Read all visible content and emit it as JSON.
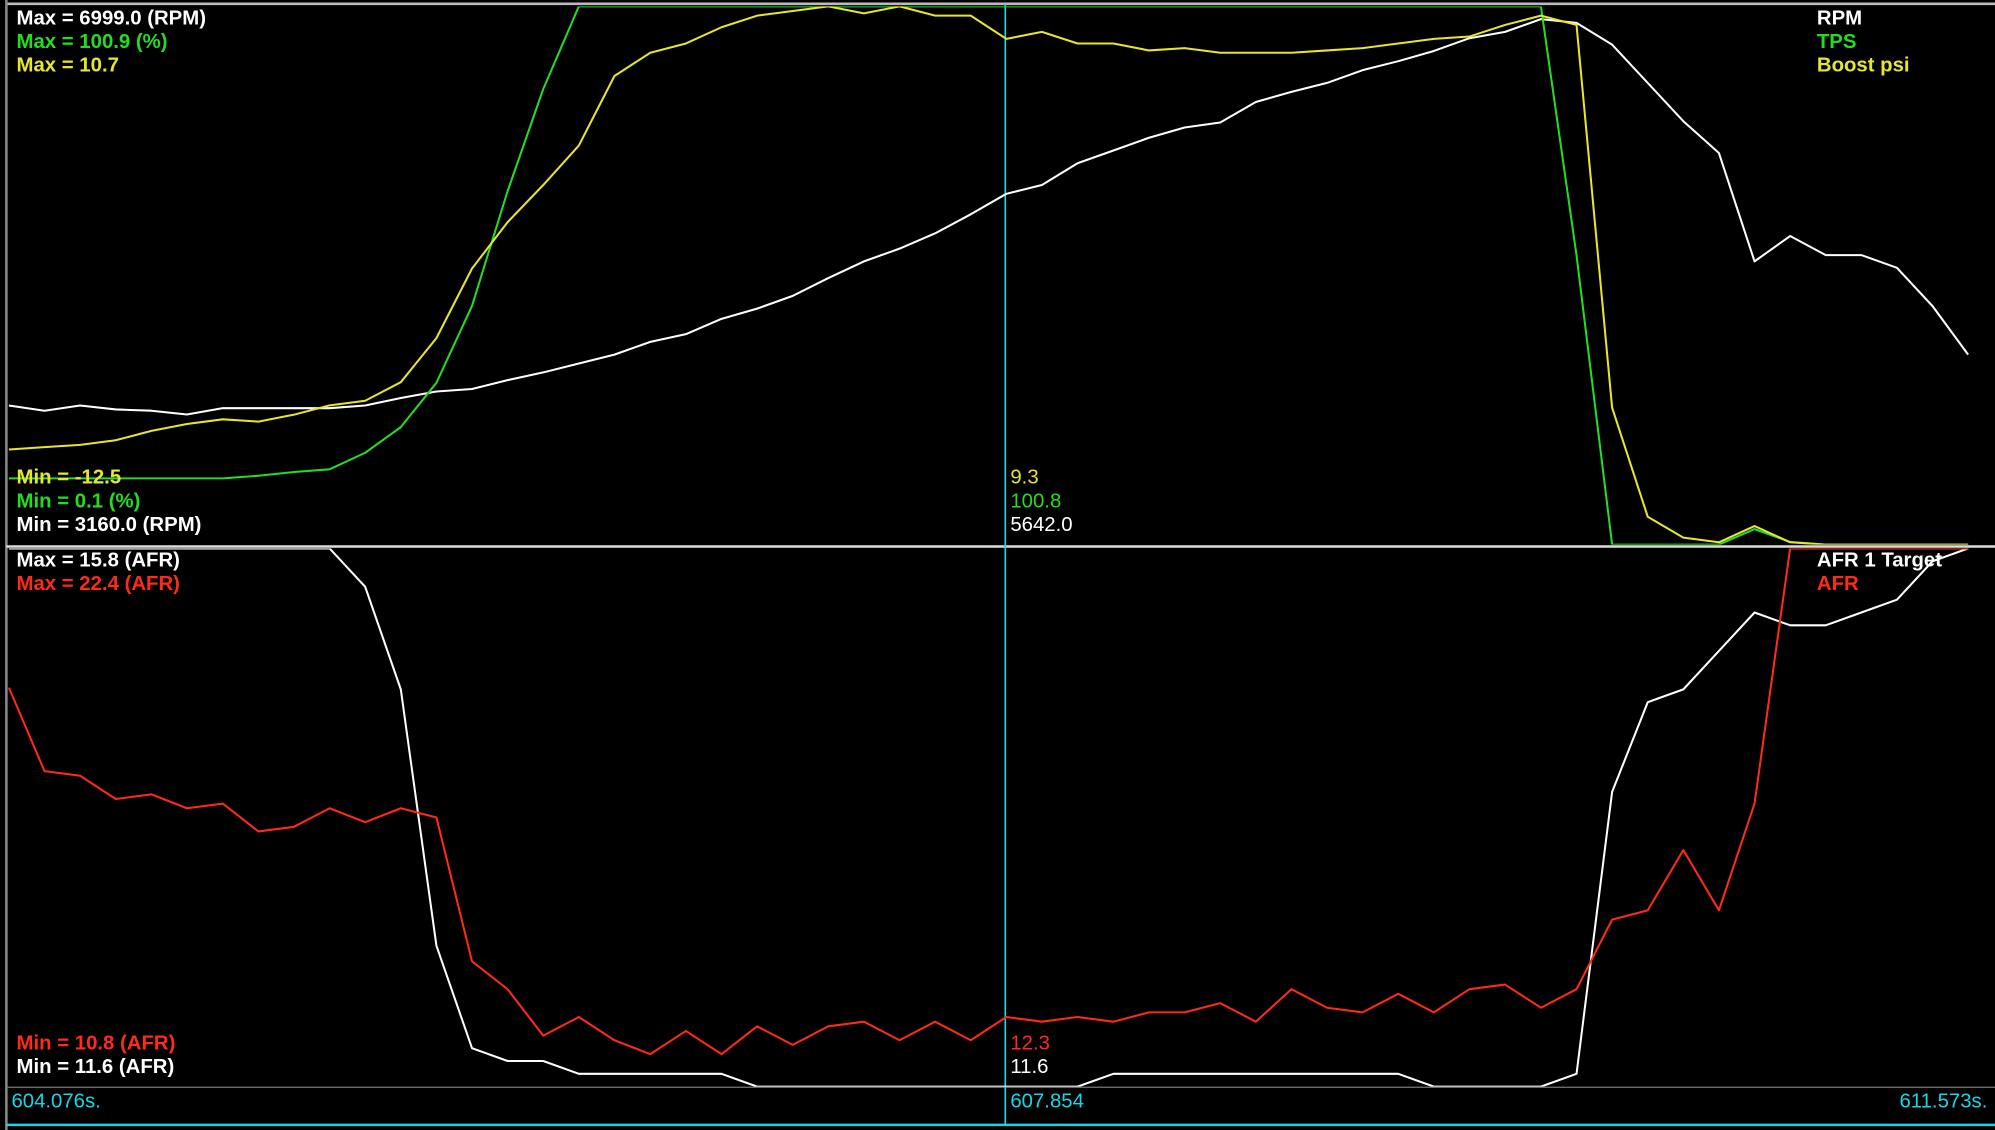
{
  "chart_data": [
    {
      "type": "line",
      "xlim": [
        604.076,
        611.573
      ],
      "cursor_x": 607.854,
      "x": [
        604.076,
        604.211,
        604.346,
        604.481,
        604.616,
        604.751,
        604.887,
        605.022,
        605.157,
        605.292,
        605.427,
        605.562,
        605.697,
        605.832,
        605.967,
        606.102,
        606.237,
        606.372,
        606.508,
        606.643,
        606.778,
        606.913,
        607.048,
        607.183,
        607.318,
        607.453,
        607.588,
        607.723,
        607.858,
        607.993,
        608.128,
        608.264,
        608.399,
        608.534,
        608.669,
        608.804,
        608.939,
        609.074,
        609.209,
        609.344,
        609.479,
        609.614,
        609.749,
        609.885,
        610.02,
        610.155,
        610.29,
        610.425,
        610.56,
        610.695,
        610.83,
        610.965,
        611.1,
        611.235,
        611.37,
        611.505
      ],
      "series": [
        {
          "name": "RPM",
          "color": "#ffffff",
          "ylim": [
            3160,
            6999
          ],
          "max_label": "Max = 6999.0 (RPM)",
          "min_label": "Min = 3160.0 (RPM)",
          "cursor_value": {
            "value": 5642,
            "label": "5642.0"
          },
          "values": [
            4152,
            4115,
            4152,
            4124,
            4115,
            4088,
            4133,
            4133,
            4133,
            4133,
            4152,
            4206,
            4252,
            4270,
            4333,
            4388,
            4452,
            4515,
            4606,
            4661,
            4770,
            4843,
            4934,
            5061,
            5180,
            5271,
            5380,
            5516,
            5662,
            5725,
            5880,
            5971,
            6062,
            6135,
            6171,
            6317,
            6389,
            6453,
            6544,
            6608,
            6681,
            6772,
            6817,
            6908,
            6881,
            6726,
            6453,
            6180,
            5953,
            5180,
            5361,
            5225,
            5225,
            5134,
            4861,
            4515
          ]
        },
        {
          "name": "TPS",
          "color": "#22dd22",
          "ylim": [
            0.1,
            100.9
          ],
          "max_label": "Max = 100.9 (%)",
          "min_label": "Min = 0.1 (%)",
          "cursor_value": 100.8,
          "values": [
            12.5,
            12.5,
            12.5,
            12.5,
            12.5,
            12.5,
            12.5,
            13.0,
            13.7,
            14.2,
            17.3,
            22.1,
            30.4,
            44.8,
            66.3,
            85.4,
            100.9,
            100.9,
            100.9,
            100.9,
            100.9,
            100.9,
            100.9,
            100.9,
            100.9,
            100.9,
            100.9,
            100.9,
            100.9,
            100.9,
            100.9,
            100.9,
            100.9,
            100.9,
            100.9,
            100.9,
            100.9,
            100.9,
            100.9,
            100.9,
            100.9,
            100.9,
            100.9,
            100.9,
            54.3,
            0.1,
            0.1,
            0.1,
            0.1,
            3.0,
            0.6,
            0.1,
            0.1,
            0.1,
            0.1,
            0.1
          ]
        },
        {
          "name": "Boost psi",
          "color": "#e6e62e",
          "ylim": [
            -12.5,
            10.7
          ],
          "max_label": "Max = 10.7",
          "min_label": "Min = -12.5",
          "cursor_value": 9.3,
          "values": [
            -8.4,
            -8.3,
            -8.2,
            -8.0,
            -7.6,
            -7.3,
            -7.1,
            -7.2,
            -6.9,
            -6.5,
            -6.3,
            -5.5,
            -3.6,
            -0.6,
            1.4,
            3.0,
            4.7,
            7.7,
            8.7,
            9.1,
            9.8,
            10.3,
            10.5,
            10.7,
            10.4,
            10.7,
            10.3,
            10.3,
            9.3,
            9.6,
            9.1,
            9.1,
            8.8,
            8.9,
            8.7,
            8.7,
            8.7,
            8.8,
            8.9,
            9.1,
            9.3,
            9.4,
            9.9,
            10.3,
            9.9,
            -6.6,
            -11.3,
            -12.2,
            -12.4,
            -11.7,
            -12.4,
            -12.5,
            -12.5,
            -12.5,
            -12.5,
            -12.5
          ]
        }
      ]
    },
    {
      "type": "line",
      "xlim": [
        604.076,
        611.573
      ],
      "xticks": [
        {
          "value": 604.076,
          "label": "604.076s."
        },
        {
          "value": 611.573,
          "label": "611.573s."
        }
      ],
      "cursor_x": 607.854,
      "x": [
        604.076,
        604.211,
        604.346,
        604.481,
        604.616,
        604.751,
        604.887,
        605.022,
        605.157,
        605.292,
        605.427,
        605.562,
        605.697,
        605.832,
        605.967,
        606.102,
        606.237,
        606.372,
        606.508,
        606.643,
        606.778,
        606.913,
        607.048,
        607.183,
        607.318,
        607.453,
        607.588,
        607.723,
        607.858,
        607.993,
        608.128,
        608.264,
        608.399,
        608.534,
        608.669,
        608.804,
        608.939,
        609.074,
        609.209,
        609.344,
        609.479,
        609.614,
        609.749,
        609.885,
        610.02,
        610.155,
        610.29,
        610.425,
        610.56,
        610.695,
        610.83,
        610.965,
        611.1,
        611.235,
        611.37,
        611.505
      ],
      "series": [
        {
          "name": "AFR 1 Target",
          "color": "#ffffff",
          "ylim": [
            11.6,
            15.8
          ],
          "max_label": "Max = 15.8 (AFR)",
          "min_label": "Min = 11.6 (AFR)",
          "cursor_value": 11.6,
          "values": [
            15.8,
            15.8,
            15.8,
            15.8,
            15.8,
            15.8,
            15.8,
            15.8,
            15.8,
            15.8,
            15.5,
            14.7,
            12.7,
            11.9,
            11.8,
            11.8,
            11.7,
            11.7,
            11.7,
            11.7,
            11.7,
            11.6,
            11.6,
            11.6,
            11.6,
            11.6,
            11.6,
            11.6,
            11.6,
            11.6,
            11.6,
            11.7,
            11.7,
            11.7,
            11.7,
            11.7,
            11.7,
            11.7,
            11.7,
            11.7,
            11.6,
            11.6,
            11.6,
            11.6,
            11.7,
            13.9,
            14.6,
            14.7,
            15.0,
            15.3,
            15.2,
            15.2,
            15.3,
            15.4,
            15.7,
            15.8
          ]
        },
        {
          "name": "AFR",
          "color": "#ff2a1a",
          "ylim": [
            10.8,
            22.4
          ],
          "max_label": "Max = 22.4 (AFR)",
          "min_label": "Min = 10.8 (AFR)",
          "cursor_value": 12.3,
          "values": [
            19.4,
            17.6,
            17.5,
            17.0,
            17.1,
            16.8,
            16.9,
            16.3,
            16.4,
            16.8,
            16.5,
            16.8,
            16.6,
            13.5,
            12.9,
            11.9,
            12.3,
            11.8,
            11.5,
            12.0,
            11.5,
            12.1,
            11.7,
            12.1,
            12.2,
            11.8,
            12.2,
            11.8,
            12.3,
            12.2,
            12.3,
            12.2,
            12.4,
            12.4,
            12.6,
            12.2,
            12.9,
            12.5,
            12.4,
            12.8,
            12.4,
            12.9,
            13.0,
            12.5,
            12.9,
            14.4,
            14.6,
            15.9,
            14.6,
            16.9,
            22.4,
            22.4,
            22.4,
            22.4,
            22.4,
            22.4
          ]
        }
      ]
    }
  ]
}
